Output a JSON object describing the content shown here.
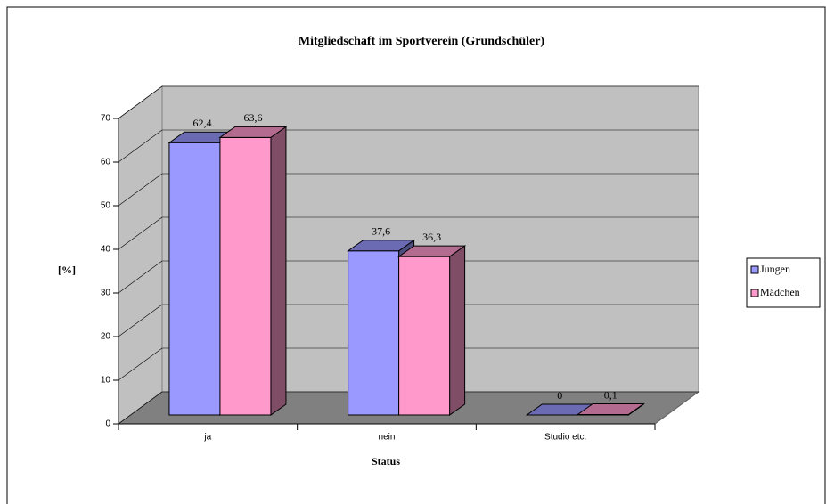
{
  "chart_data": {
    "type": "bar3d",
    "title": "Mitgliedschaft im Sportverein (Grundschüler)",
    "xlabel": "Status",
    "ylabel": "[%]",
    "categories": [
      "ja",
      "nein",
      "Studio etc."
    ],
    "series": [
      {
        "name": "Jungen",
        "color": "#9999ff",
        "values": [
          62.4,
          37.6,
          0
        ],
        "value_labels": [
          "62,4",
          "37,6",
          "0"
        ]
      },
      {
        "name": "Mädchen",
        "color": "#ff99cc",
        "values": [
          63.6,
          36.3,
          0.1
        ],
        "value_labels": [
          "63,6",
          "36,3",
          "0,1"
        ]
      }
    ],
    "ylim": [
      0,
      70
    ],
    "yticks": [
      0,
      10,
      20,
      30,
      40,
      50,
      60,
      70
    ],
    "grid": true,
    "legend": "right"
  }
}
